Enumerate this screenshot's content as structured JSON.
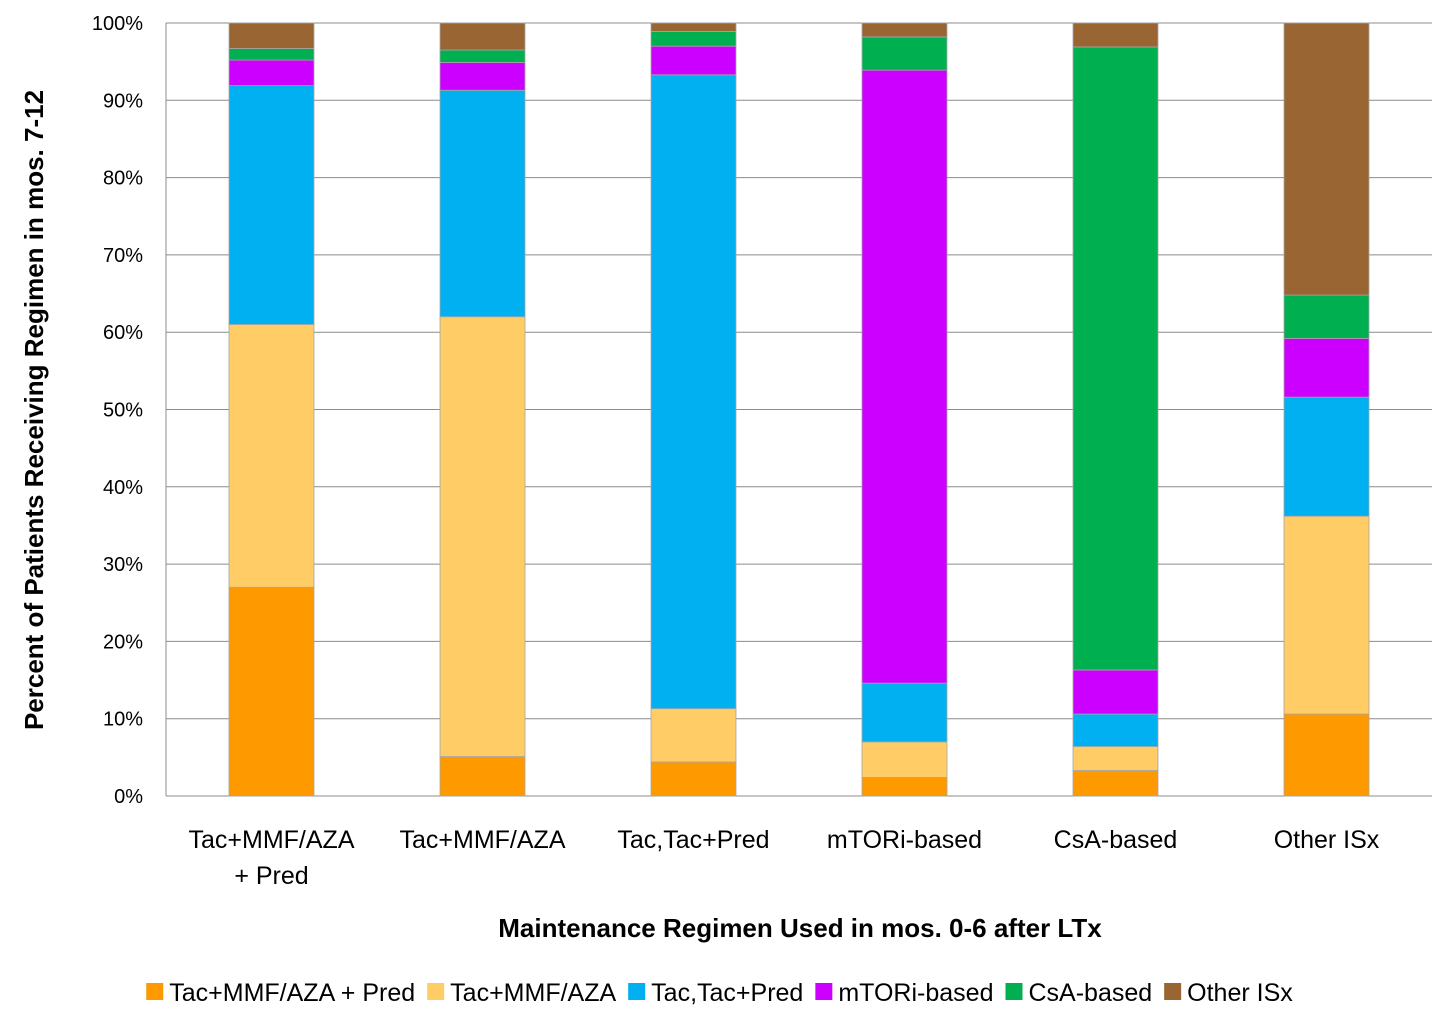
{
  "chart_data": {
    "type": "bar",
    "stacked": true,
    "percent_stacked": true,
    "categories": [
      "Tac+MMF/AZA + Pred",
      "Tac+MMF/AZA",
      "Tac,Tac+Pred",
      "mTORi-based",
      "CsA-based",
      "Other ISx"
    ],
    "category_lines": [
      [
        "Tac+MMF/AZA",
        "+ Pred"
      ],
      [
        "Tac+MMF/AZA"
      ],
      [
        "Tac,Tac+Pred"
      ],
      [
        "mTORi-based"
      ],
      [
        "CsA-based"
      ],
      [
        "Other ISx"
      ]
    ],
    "series": [
      {
        "name": "Tac+MMF/AZA + Pred",
        "color": "#FF9900",
        "values": [
          27.0,
          5.1,
          4.4,
          2.4,
          3.3,
          10.6
        ]
      },
      {
        "name": "Tac+MMF/AZA",
        "color": "#FFCC66",
        "values": [
          34.0,
          56.9,
          6.9,
          4.6,
          3.1,
          25.6
        ]
      },
      {
        "name": "Tac,Tac+Pred",
        "color": "#00B0F0",
        "values": [
          30.9,
          29.3,
          82.0,
          7.6,
          4.2,
          15.4
        ]
      },
      {
        "name": "mTORi-based",
        "color": "#CC00FF",
        "values": [
          3.3,
          3.6,
          3.7,
          79.3,
          5.7,
          7.6
        ]
      },
      {
        "name": "CsA-based",
        "color": "#00B050",
        "values": [
          1.5,
          1.6,
          1.9,
          4.3,
          80.6,
          5.6
        ]
      },
      {
        "name": "Other ISx",
        "color": "#996633",
        "values": [
          3.3,
          3.5,
          1.1,
          1.8,
          3.1,
          35.2
        ]
      }
    ],
    "ylim": [
      0,
      100
    ],
    "yticks": [
      "0%",
      "10%",
      "20%",
      "30%",
      "40%",
      "50%",
      "60%",
      "70%",
      "80%",
      "90%",
      "100%"
    ],
    "xlabel": "Maintenance Regimen Used in mos. 0-6 after LTx",
    "ylabel": "Percent of Patients Receiving Regimen in mos. 7-12",
    "grid": true,
    "legend_position": "bottom"
  }
}
